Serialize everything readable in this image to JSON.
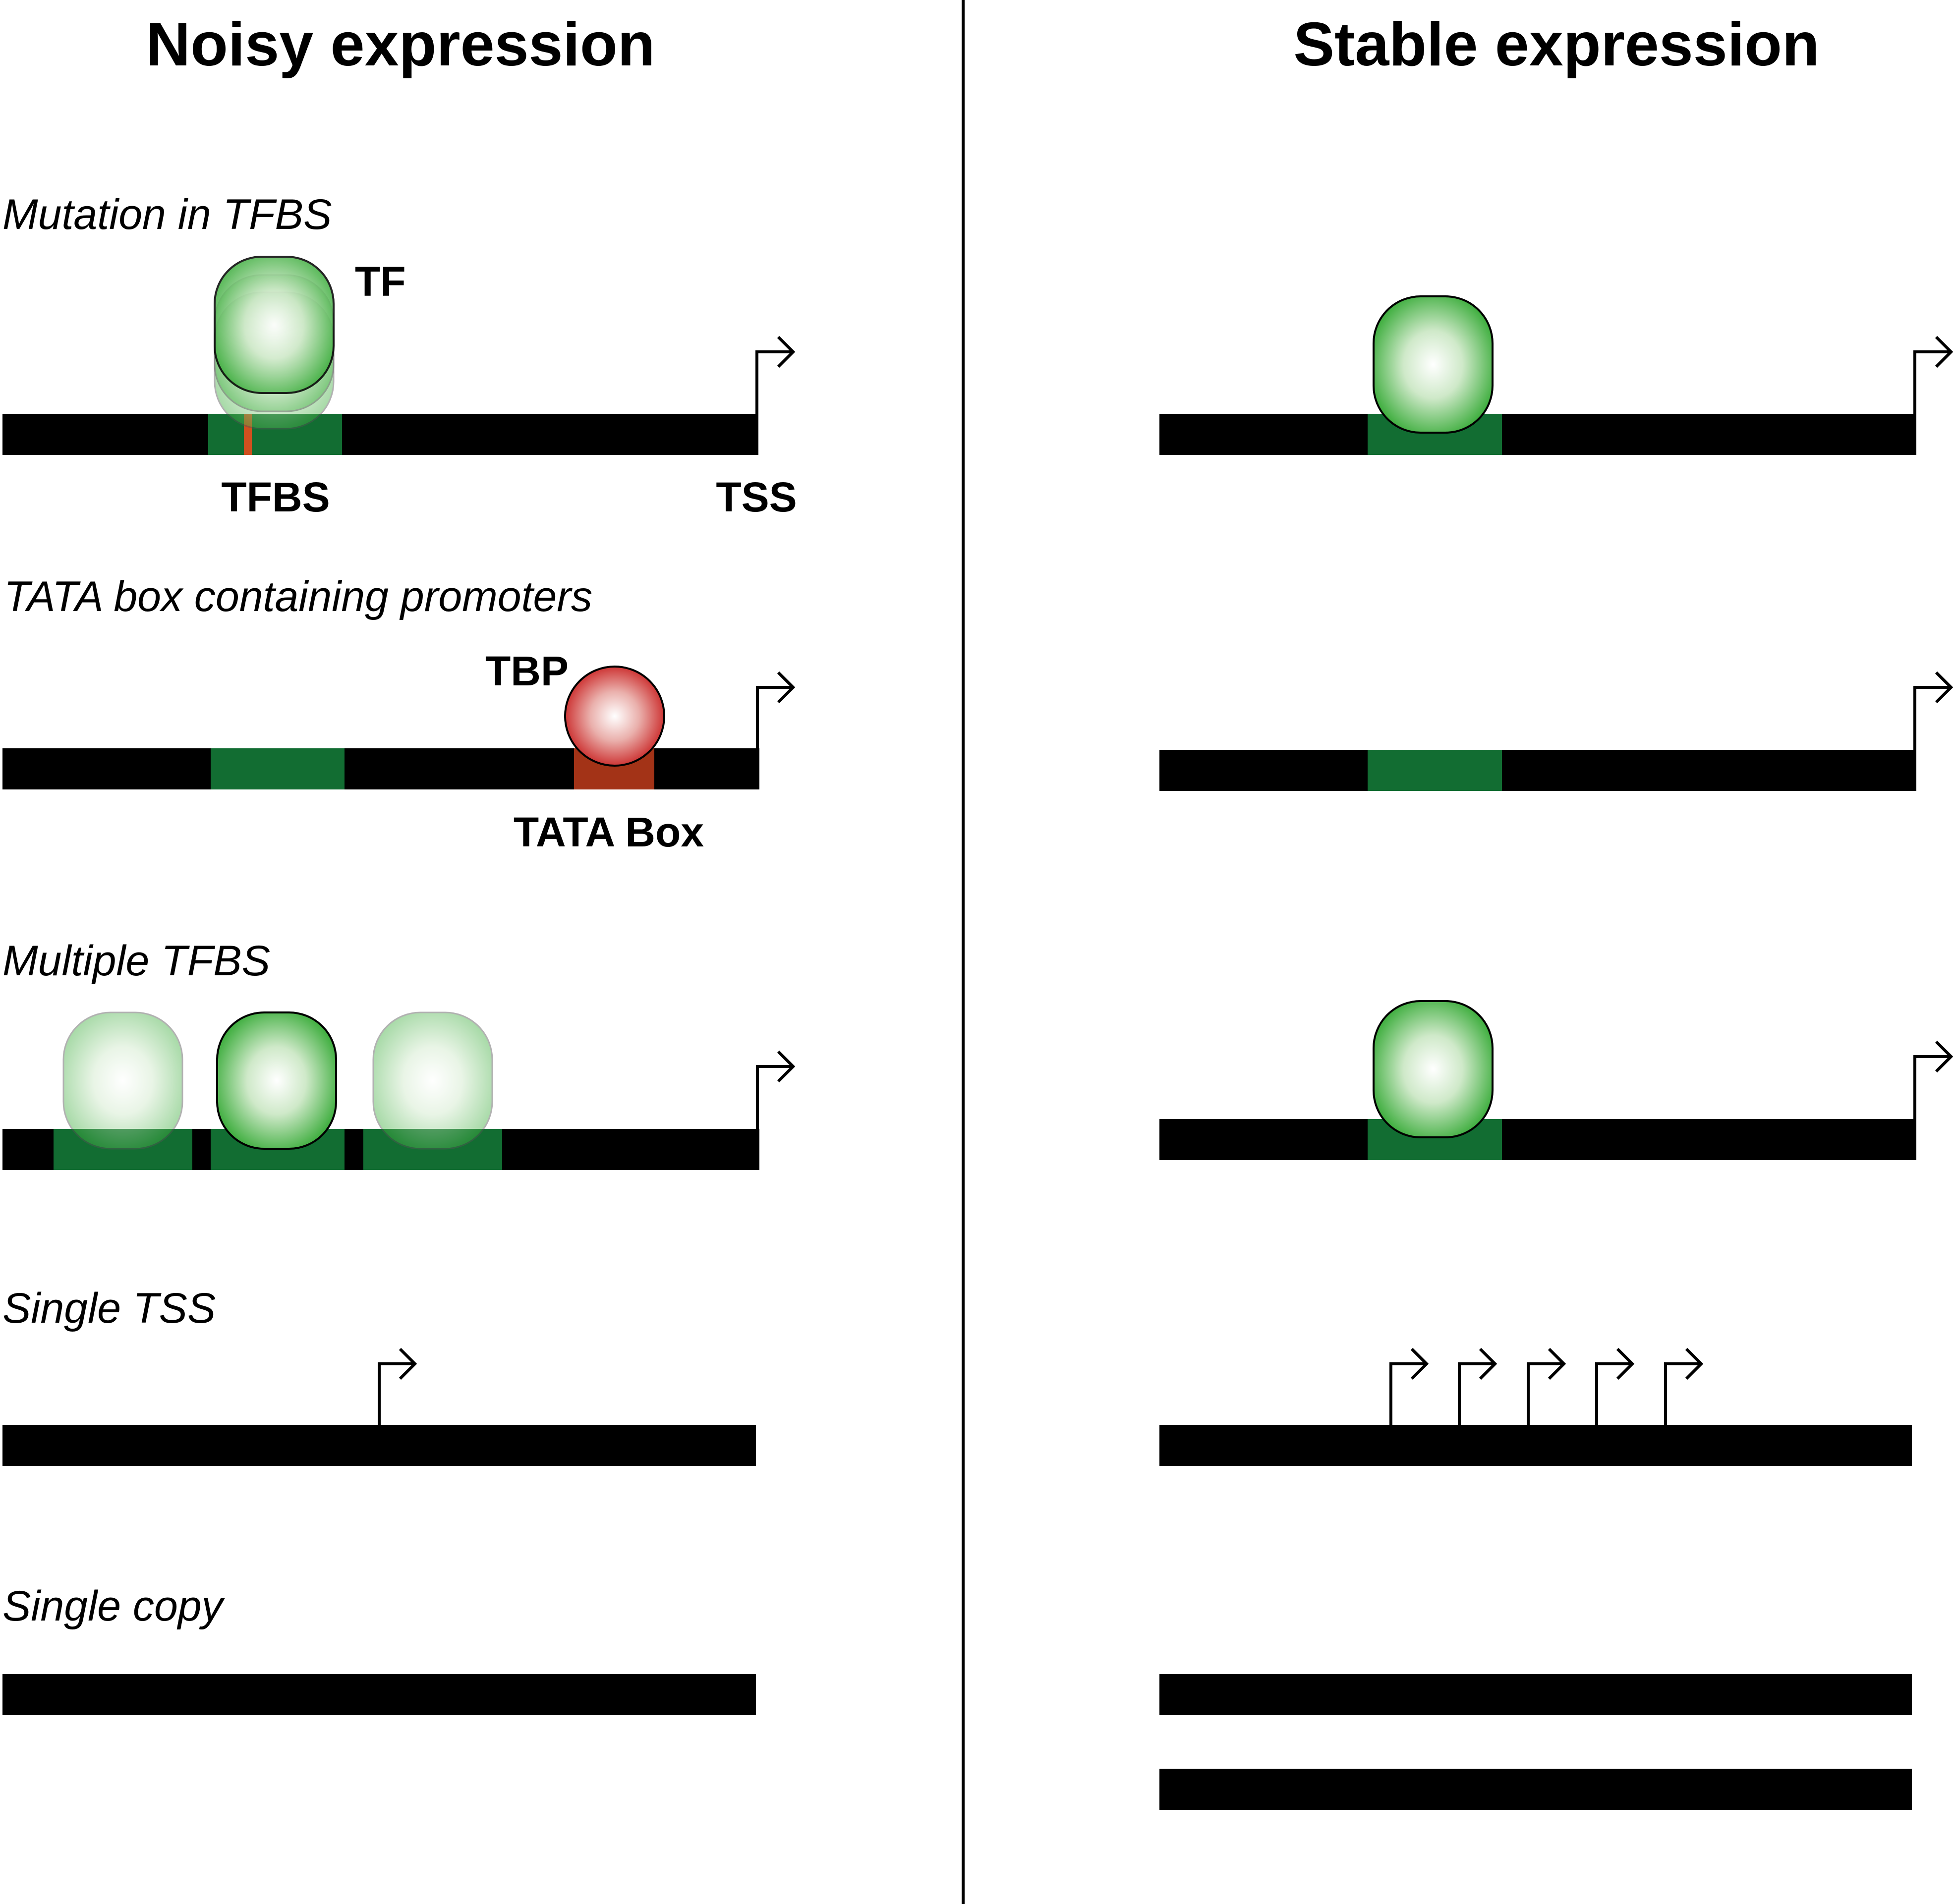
{
  "headings": {
    "left": "Noisy expression",
    "right": "Stable expression"
  },
  "sections": [
    "Mutation in TFBS",
    "TATA box containing promoters",
    "Multiple TFBS",
    "Single TSS",
    "Single copy"
  ],
  "labels": {
    "tf": "TF",
    "tfbs": "TFBS",
    "tss": "TSS",
    "tbp": "TBP",
    "tata_box": "TATA Box"
  },
  "colors": {
    "dna": "#000000",
    "binding_site": "#126d32",
    "tf_protein": "#3fae3f",
    "tbp_protein": "#c81e1e",
    "tata_box": "#a33317",
    "mutation": "#d0501f"
  },
  "stable_tss_count": 5,
  "stable_copy_count": 2
}
